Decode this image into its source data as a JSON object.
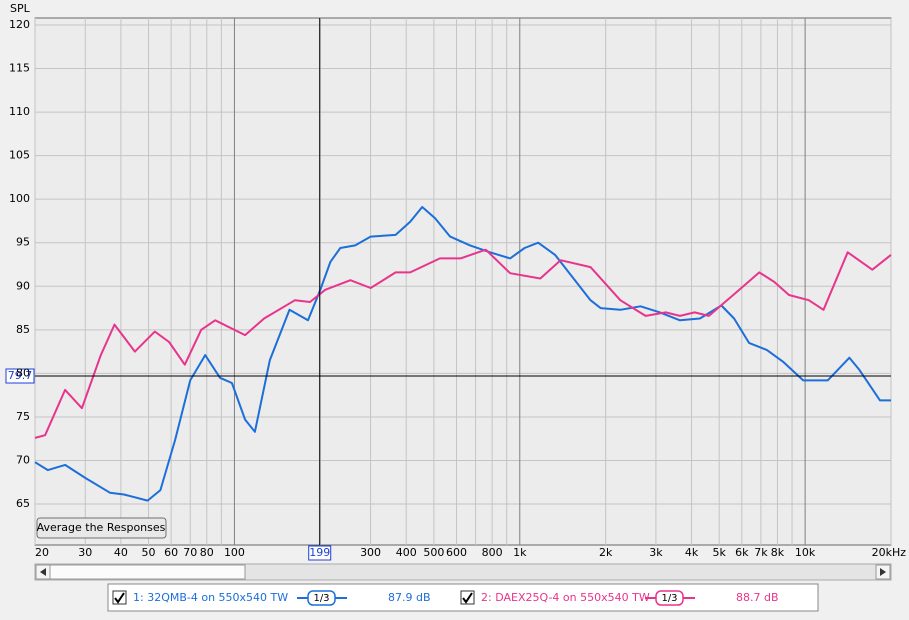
{
  "chart_data": {
    "type": "line",
    "y_label": "SPL",
    "xlim": [
      20,
      20000
    ],
    "ylim": [
      60.3,
      120.8
    ],
    "log_x": true,
    "grid": true,
    "yticks": [
      65,
      70,
      75,
      80,
      85,
      90,
      95,
      100,
      105,
      110,
      115,
      120
    ],
    "xticks": [
      20,
      30,
      40,
      50,
      60,
      70,
      80,
      100,
      300,
      400,
      500,
      600,
      800,
      {
        "value": 1000,
        "label": "1k"
      },
      {
        "value": 2000,
        "label": "2k"
      },
      {
        "value": 3000,
        "label": "3k"
      },
      {
        "value": 4000,
        "label": "4k"
      },
      {
        "value": 5000,
        "label": "5k"
      },
      {
        "value": 6000,
        "label": "6k"
      },
      {
        "value": 7000,
        "label": "7k"
      },
      {
        "value": 8000,
        "label": "8k"
      },
      {
        "value": 10000,
        "label": "10k"
      },
      {
        "value": 20000,
        "label": "20kHz"
      }
    ],
    "minor_xticks": [
      90,
      200,
      700,
      900,
      9000
    ],
    "cursor": {
      "x": 199,
      "y": 79.7
    },
    "button": "Average the Responses",
    "series": [
      {
        "name": "1: 32QMB-4 on 550x540 TW",
        "color": "#1c6fd9",
        "smoothing": "1/3",
        "level": "87.9 dB",
        "x": [
          20,
          22.2,
          25.5,
          30,
          36.6,
          41,
          49.6,
          55,
          62,
          70,
          79,
          89,
          98,
          109,
          118,
          133,
          156,
          181,
          200,
          217,
          235,
          265,
          300,
          367,
          413,
          455,
          505,
          570,
          670,
          787,
          925,
          1040,
          1160,
          1330,
          1560,
          1770,
          1920,
          2250,
          2650,
          3100,
          3640,
          4280,
          5090,
          5640,
          6360,
          7340,
          8400,
          9850,
          12000,
          14300,
          15500,
          18300,
          20000
        ],
        "values": [
          69.8,
          68.9,
          69.5,
          68.0,
          66.3,
          66.1,
          65.4,
          66.6,
          72.4,
          79.2,
          82.1,
          79.5,
          78.9,
          74.7,
          73.3,
          81.5,
          87.3,
          86.1,
          89.6,
          92.8,
          94.4,
          94.7,
          95.7,
          95.9,
          97.4,
          99.1,
          97.8,
          95.7,
          94.7,
          93.9,
          93.2,
          94.4,
          95.0,
          93.6,
          90.7,
          88.4,
          87.5,
          87.3,
          87.7,
          87.0,
          86.1,
          86.3,
          87.8,
          86.3,
          83.5,
          82.7,
          81.3,
          79.2,
          79.2,
          81.8,
          80.4,
          76.9,
          76.9
        ]
      },
      {
        "name": "2: DAEX25Q-4 on 550x540 TW",
        "color": "#e8348c",
        "smoothing": "1/3",
        "level": "88.7 dB",
        "x": [
          20,
          21.7,
          25.5,
          29.2,
          34,
          38,
          44.8,
          52.6,
          59,
          67,
          76.5,
          85.6,
          109,
          127,
          163,
          184,
          208,
          255,
          300,
          367,
          413,
          525,
          620,
          760,
          925,
          1180,
          1390,
          1770,
          2250,
          2760,
          3250,
          3640,
          4100,
          4600,
          5880,
          6910,
          7790,
          8780,
          10300,
          11600,
          14100,
          17200,
          20000
        ],
        "values": [
          72.6,
          72.9,
          78.1,
          76.0,
          82.1,
          85.6,
          82.5,
          84.8,
          83.6,
          81.0,
          85.0,
          86.1,
          84.4,
          86.3,
          88.4,
          88.2,
          89.6,
          90.7,
          89.8,
          91.6,
          91.6,
          93.2,
          93.2,
          94.2,
          91.5,
          90.9,
          93.0,
          92.2,
          88.4,
          86.6,
          87.0,
          86.6,
          87.0,
          86.6,
          89.6,
          91.6,
          90.5,
          89.0,
          88.4,
          87.3,
          93.9,
          91.9,
          93.6
        ]
      }
    ]
  }
}
